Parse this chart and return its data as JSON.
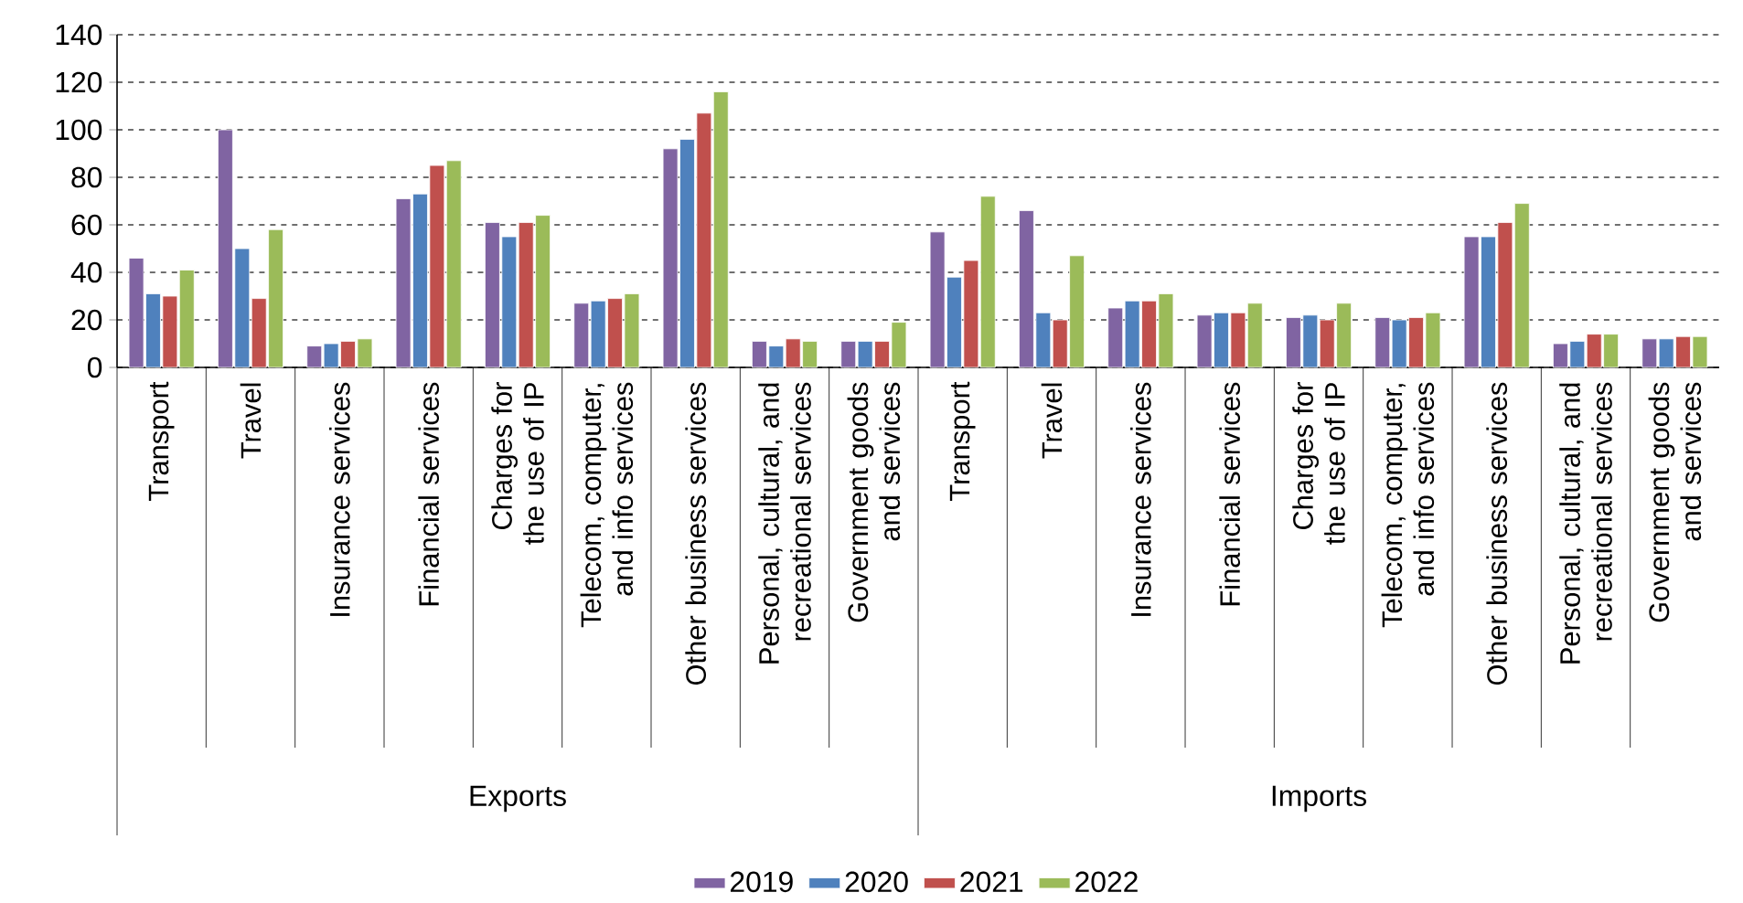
{
  "chart_data": {
    "type": "bar",
    "categories": [
      "Transport",
      "Travel",
      "Insurance services",
      "Financial services",
      "Charges for the use of IP",
      "Telecom, computer, and info services",
      "Other business services",
      "Personal, cultural, and recreational services",
      "Government goods and services",
      "Transport",
      "Travel",
      "Insurance services",
      "Financial services",
      "Charges for the use of IP",
      "Telecom, computer, and info services",
      "Other business services",
      "Personal, cultural, and recreational services",
      "Government goods and services"
    ],
    "series": [
      {
        "name": "2019",
        "color": "#8064a2",
        "values": [
          46,
          100,
          9,
          71,
          61,
          27,
          92,
          11,
          11,
          57,
          66,
          25,
          22,
          21,
          21,
          55,
          10,
          12
        ]
      },
      {
        "name": "2020",
        "color": "#4f81bd",
        "values": [
          31,
          50,
          10,
          73,
          55,
          28,
          96,
          9,
          11,
          38,
          23,
          28,
          23,
          22,
          20,
          55,
          11,
          12
        ]
      },
      {
        "name": "2021",
        "color": "#c0504d",
        "values": [
          30,
          29,
          11,
          85,
          61,
          29,
          107,
          12,
          11,
          45,
          20,
          28,
          23,
          20,
          21,
          61,
          14,
          13
        ]
      },
      {
        "name": "2022",
        "color": "#9bbb59",
        "values": [
          41,
          58,
          12,
          87,
          64,
          31,
          116,
          11,
          19,
          72,
          47,
          31,
          27,
          27,
          23,
          69,
          14,
          13
        ]
      }
    ],
    "annotations": [
      "Exports",
      "Imports"
    ],
    "ylim": [
      0,
      140
    ],
    "yticks": [
      0,
      20,
      40,
      60,
      80,
      100,
      120,
      140
    ],
    "grid": "y",
    "legend": "bottom"
  }
}
